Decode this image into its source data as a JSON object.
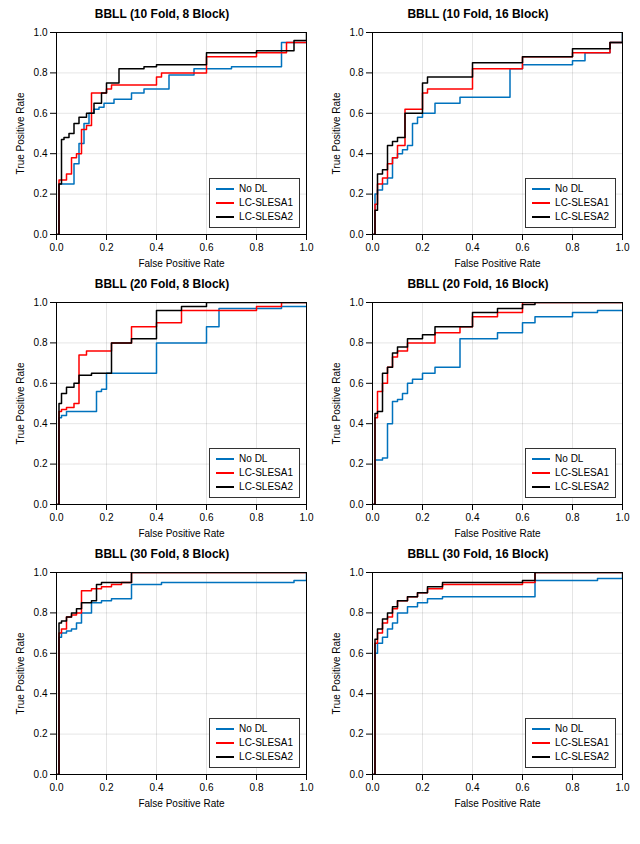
{
  "chart_data": [
    {
      "type": "step",
      "title": "BBLL (10 Fold, 8 Block)",
      "xlabel": "False Positive Rate",
      "ylabel": "True Positive Rate",
      "xlim": [
        0,
        1
      ],
      "ylim": [
        0,
        1
      ],
      "xticks": [
        {
          "value": 0,
          "label": "0.0"
        },
        0.2,
        0.4,
        0.6,
        0.8,
        {
          "value": 1,
          "label": "1.0"
        }
      ],
      "yticks": [
        {
          "value": 0,
          "label": "0.0"
        },
        0.2,
        0.4,
        0.6,
        0.8,
        {
          "value": 1,
          "label": "1.0"
        }
      ],
      "grid": true,
      "legend": "lower right",
      "series": [
        {
          "name": "No DL",
          "color": "#0072BD",
          "x": [
            0,
            0.01,
            0.01,
            0.02,
            0.04,
            0.05,
            0.07,
            0.09,
            0.11,
            0.13,
            0.15,
            0.17,
            0.19,
            0.21,
            0.23,
            0.3,
            0.35,
            0.4,
            0.45,
            0.55,
            0.6,
            0.7,
            0.8,
            0.9,
            0.95,
            1.0
          ],
          "values": [
            0,
            0.08,
            0.25,
            0.25,
            0.25,
            0.25,
            0.35,
            0.45,
            0.55,
            0.6,
            0.62,
            0.63,
            0.65,
            0.65,
            0.67,
            0.7,
            0.72,
            0.72,
            0.79,
            0.82,
            0.82,
            0.83,
            0.83,
            0.95,
            0.95,
            0.95
          ]
        },
        {
          "name": "LC-SLESA1",
          "color": "#FF0000",
          "x": [
            0,
            0.01,
            0.02,
            0.04,
            0.06,
            0.08,
            0.1,
            0.12,
            0.14,
            0.18,
            0.2,
            0.22,
            0.35,
            0.4,
            0.42,
            0.55,
            0.6,
            0.75,
            0.8,
            0.9,
            0.92,
            1.0
          ],
          "values": [
            0,
            0.27,
            0.27,
            0.3,
            0.38,
            0.4,
            0.52,
            0.54,
            0.7,
            0.7,
            0.72,
            0.74,
            0.74,
            0.78,
            0.8,
            0.8,
            0.88,
            0.88,
            0.9,
            0.9,
            0.95,
            0.95
          ]
        },
        {
          "name": "LC-SLESA2",
          "color": "#000000",
          "x": [
            0,
            0.01,
            0.02,
            0.03,
            0.05,
            0.07,
            0.09,
            0.12,
            0.15,
            0.18,
            0.2,
            0.25,
            0.35,
            0.4,
            0.55,
            0.6,
            0.75,
            0.8,
            0.9,
            0.95,
            1.0
          ],
          "values": [
            0,
            0.25,
            0.47,
            0.48,
            0.5,
            0.55,
            0.58,
            0.6,
            0.65,
            0.7,
            0.75,
            0.82,
            0.83,
            0.84,
            0.84,
            0.9,
            0.9,
            0.91,
            0.91,
            0.96,
            1.0
          ]
        }
      ]
    },
    {
      "type": "step",
      "title": "BBLL (10 Fold, 16 Block)",
      "xlabel": "False Positive Rate",
      "ylabel": "True Positive Rate",
      "xlim": [
        0,
        1
      ],
      "ylim": [
        0,
        1
      ],
      "xticks": [
        {
          "value": 0,
          "label": "0.0"
        },
        0.2,
        0.4,
        0.6,
        0.8,
        {
          "value": 1,
          "label": "1.0"
        }
      ],
      "yticks": [
        {
          "value": 0,
          "label": "0.0"
        },
        0.2,
        0.4,
        0.6,
        0.8,
        {
          "value": 1,
          "label": "1.0"
        }
      ],
      "grid": true,
      "legend": "lower right",
      "series": [
        {
          "name": "No DL",
          "color": "#0072BD",
          "x": [
            0,
            0.01,
            0.02,
            0.04,
            0.06,
            0.08,
            0.1,
            0.12,
            0.14,
            0.16,
            0.18,
            0.2,
            0.25,
            0.35,
            0.4,
            0.55,
            0.6,
            0.7,
            0.8,
            0.85,
            0.9,
            0.95,
            1.0
          ],
          "values": [
            0,
            0.2,
            0.22,
            0.25,
            0.28,
            0.38,
            0.4,
            0.42,
            0.44,
            0.55,
            0.58,
            0.6,
            0.65,
            0.68,
            0.68,
            0.82,
            0.84,
            0.84,
            0.86,
            0.9,
            0.9,
            0.95,
            1.0
          ]
        },
        {
          "name": "LC-SLESA1",
          "color": "#FF0000",
          "x": [
            0,
            0.01,
            0.02,
            0.04,
            0.06,
            0.08,
            0.1,
            0.13,
            0.18,
            0.2,
            0.22,
            0.35,
            0.4,
            0.55,
            0.6,
            0.7,
            0.8,
            0.9,
            0.95,
            1.0
          ],
          "values": [
            0,
            0.15,
            0.25,
            0.28,
            0.35,
            0.38,
            0.44,
            0.62,
            0.62,
            0.7,
            0.72,
            0.72,
            0.82,
            0.82,
            0.88,
            0.88,
            0.9,
            0.9,
            0.95,
            0.95
          ]
        },
        {
          "name": "LC-SLESA2",
          "color": "#000000",
          "x": [
            0,
            0.01,
            0.02,
            0.04,
            0.06,
            0.08,
            0.1,
            0.13,
            0.18,
            0.2,
            0.22,
            0.35,
            0.4,
            0.55,
            0.6,
            0.8,
            0.9,
            0.95,
            1.0
          ],
          "values": [
            0,
            0.12,
            0.3,
            0.32,
            0.44,
            0.46,
            0.48,
            0.6,
            0.6,
            0.75,
            0.78,
            0.78,
            0.85,
            0.85,
            0.88,
            0.92,
            0.92,
            0.95,
            1.0
          ]
        }
      ]
    },
    {
      "type": "step",
      "title": "BBLL (20 Fold, 8 Block)",
      "xlabel": "False Positive Rate",
      "ylabel": "True Positive Rate",
      "xlim": [
        0,
        1
      ],
      "ylim": [
        0,
        1
      ],
      "xticks": [
        {
          "value": 0,
          "label": "0.0"
        },
        0.2,
        0.4,
        0.6,
        0.8,
        {
          "value": 1,
          "label": "1.0"
        }
      ],
      "yticks": [
        {
          "value": 0,
          "label": "0.0"
        },
        0.2,
        0.4,
        0.6,
        0.8,
        {
          "value": 1,
          "label": "1.0"
        }
      ],
      "grid": true,
      "legend": "lower right",
      "series": [
        {
          "name": "No DL",
          "color": "#0072BD",
          "x": [
            0,
            0.01,
            0.02,
            0.04,
            0.07,
            0.09,
            0.14,
            0.16,
            0.18,
            0.2,
            0.3,
            0.4,
            0.5,
            0.6,
            0.65,
            0.8,
            0.9,
            1.0
          ],
          "values": [
            0,
            0.43,
            0.44,
            0.46,
            0.46,
            0.46,
            0.46,
            0.56,
            0.57,
            0.65,
            0.65,
            0.8,
            0.8,
            0.88,
            0.97,
            0.97,
            0.98,
            0.98
          ]
        },
        {
          "name": "LC-SLESA1",
          "color": "#FF0000",
          "x": [
            0,
            0.01,
            0.02,
            0.04,
            0.07,
            0.09,
            0.1,
            0.12,
            0.14,
            0.2,
            0.22,
            0.3,
            0.4,
            0.5,
            0.6,
            0.8,
            0.9,
            1.0
          ],
          "values": [
            0,
            0.46,
            0.47,
            0.48,
            0.5,
            0.74,
            0.74,
            0.76,
            0.76,
            0.76,
            0.8,
            0.88,
            0.9,
            0.96,
            0.96,
            0.98,
            1.0,
            1.0
          ]
        },
        {
          "name": "LC-SLESA2",
          "color": "#000000",
          "x": [
            0,
            0.01,
            0.02,
            0.04,
            0.07,
            0.09,
            0.1,
            0.12,
            0.14,
            0.2,
            0.22,
            0.3,
            0.4,
            0.5,
            0.6,
            0.8,
            0.9,
            1.0
          ],
          "values": [
            0,
            0.5,
            0.55,
            0.58,
            0.6,
            0.64,
            0.64,
            0.64,
            0.65,
            0.65,
            0.8,
            0.82,
            0.96,
            0.98,
            1.0,
            1.0,
            1.0,
            1.0
          ]
        }
      ]
    },
    {
      "type": "step",
      "title": "BBLL (20 Fold, 16 Block)",
      "xlabel": "False Positive Rate",
      "ylabel": "True Positive Rate",
      "xlim": [
        0,
        1
      ],
      "ylim": [
        0,
        1
      ],
      "xticks": [
        {
          "value": 0,
          "label": "0.0"
        },
        0.2,
        0.4,
        0.6,
        0.8,
        {
          "value": 1,
          "label": "1.0"
        }
      ],
      "yticks": [
        {
          "value": 0,
          "label": "0.0"
        },
        0.2,
        0.4,
        0.6,
        0.8,
        {
          "value": 1,
          "label": "1.0"
        }
      ],
      "grid": true,
      "legend": "lower right",
      "series": [
        {
          "name": "No DL",
          "color": "#0072BD",
          "x": [
            0,
            0.01,
            0.02,
            0.04,
            0.06,
            0.08,
            0.1,
            0.12,
            0.14,
            0.16,
            0.2,
            0.25,
            0.35,
            0.4,
            0.5,
            0.6,
            0.65,
            0.8,
            0.9,
            1.0
          ],
          "values": [
            0,
            0.22,
            0.22,
            0.23,
            0.4,
            0.51,
            0.52,
            0.55,
            0.6,
            0.62,
            0.65,
            0.68,
            0.82,
            0.82,
            0.85,
            0.9,
            0.93,
            0.95,
            0.96,
            0.96
          ]
        },
        {
          "name": "LC-SLESA1",
          "color": "#FF0000",
          "x": [
            0,
            0.01,
            0.02,
            0.04,
            0.06,
            0.08,
            0.1,
            0.14,
            0.2,
            0.25,
            0.35,
            0.4,
            0.5,
            0.6,
            0.65,
            0.8,
            0.9,
            1.0
          ],
          "values": [
            0,
            0.43,
            0.56,
            0.6,
            0.68,
            0.73,
            0.76,
            0.8,
            0.8,
            0.85,
            0.88,
            0.93,
            0.95,
            1.0,
            1.0,
            1.0,
            1.0,
            1.0
          ]
        },
        {
          "name": "LC-SLESA2",
          "color": "#000000",
          "x": [
            0,
            0.01,
            0.02,
            0.04,
            0.06,
            0.08,
            0.1,
            0.14,
            0.2,
            0.25,
            0.35,
            0.4,
            0.5,
            0.6,
            0.65,
            0.8,
            0.9,
            1.0
          ],
          "values": [
            0,
            0.45,
            0.46,
            0.65,
            0.68,
            0.75,
            0.78,
            0.82,
            0.84,
            0.88,
            0.88,
            0.95,
            0.97,
            0.99,
            1.0,
            1.0,
            1.0,
            1.0
          ]
        }
      ]
    },
    {
      "type": "step",
      "title": "BBLL (30 Fold, 8 Block)",
      "xlabel": "False Positive Rate",
      "ylabel": "True Positive Rate",
      "xlim": [
        0,
        1
      ],
      "ylim": [
        0,
        1
      ],
      "xticks": [
        {
          "value": 0,
          "label": "0.0"
        },
        0.2,
        0.4,
        0.6,
        0.8,
        {
          "value": 1,
          "label": "1.0"
        }
      ],
      "yticks": [
        {
          "value": 0,
          "label": "0.0"
        },
        0.2,
        0.4,
        0.6,
        0.8,
        {
          "value": 1,
          "label": "1.0"
        }
      ],
      "grid": true,
      "legend": "lower right",
      "series": [
        {
          "name": "No DL",
          "color": "#0072BD",
          "x": [
            0,
            0.01,
            0.02,
            0.04,
            0.06,
            0.08,
            0.1,
            0.14,
            0.18,
            0.22,
            0.3,
            0.42,
            0.9,
            0.95,
            1.0
          ],
          "values": [
            0,
            0.68,
            0.7,
            0.71,
            0.72,
            0.75,
            0.8,
            0.85,
            0.86,
            0.87,
            0.94,
            0.95,
            0.95,
            0.96,
            1.0
          ]
        },
        {
          "name": "LC-SLESA1",
          "color": "#FF0000",
          "x": [
            0,
            0.01,
            0.02,
            0.04,
            0.06,
            0.08,
            0.1,
            0.14,
            0.18,
            0.22,
            0.26,
            0.3,
            0.42,
            0.9,
            1.0
          ],
          "values": [
            0,
            0.7,
            0.72,
            0.78,
            0.79,
            0.8,
            0.91,
            0.92,
            0.93,
            0.94,
            0.95,
            1.0,
            1.0,
            1.0,
            1.0
          ]
        },
        {
          "name": "LC-SLESA2",
          "color": "#000000",
          "x": [
            0,
            0.01,
            0.02,
            0.04,
            0.06,
            0.08,
            0.1,
            0.14,
            0.16,
            0.18,
            0.22,
            0.26,
            0.3,
            0.42,
            0.9,
            1.0
          ],
          "values": [
            0,
            0.75,
            0.76,
            0.78,
            0.8,
            0.82,
            0.85,
            0.86,
            0.94,
            0.95,
            0.95,
            0.95,
            1.0,
            1.0,
            1.0,
            1.0
          ]
        }
      ]
    },
    {
      "type": "step",
      "title": "BBLL (30 Fold, 16 Block)",
      "xlabel": "False Positive Rate",
      "ylabel": "True Positive Rate",
      "xlim": [
        0,
        1
      ],
      "ylim": [
        0,
        1
      ],
      "xticks": [
        {
          "value": 0,
          "label": "0.0"
        },
        0.2,
        0.4,
        0.6,
        0.8,
        {
          "value": 1,
          "label": "1.0"
        }
      ],
      "yticks": [
        {
          "value": 0,
          "label": "0.0"
        },
        0.2,
        0.4,
        0.6,
        0.8,
        {
          "value": 1,
          "label": "1.0"
        }
      ],
      "grid": true,
      "legend": "lower right",
      "series": [
        {
          "name": "No DL",
          "color": "#0072BD",
          "x": [
            0,
            0.01,
            0.02,
            0.04,
            0.06,
            0.08,
            0.1,
            0.14,
            0.18,
            0.22,
            0.28,
            0.6,
            0.65,
            0.9,
            1.0
          ],
          "values": [
            0,
            0.6,
            0.65,
            0.68,
            0.72,
            0.75,
            0.8,
            0.83,
            0.85,
            0.87,
            0.88,
            0.88,
            0.96,
            0.97,
            1.0
          ]
        },
        {
          "name": "LC-SLESA1",
          "color": "#FF0000",
          "x": [
            0,
            0.01,
            0.02,
            0.04,
            0.06,
            0.08,
            0.1,
            0.14,
            0.18,
            0.22,
            0.28,
            0.6,
            0.65,
            0.9,
            1.0
          ],
          "values": [
            0,
            0.65,
            0.7,
            0.75,
            0.78,
            0.82,
            0.86,
            0.88,
            0.9,
            0.92,
            0.94,
            0.95,
            1.0,
            1.0,
            1.0
          ]
        },
        {
          "name": "LC-SLESA2",
          "color": "#000000",
          "x": [
            0,
            0.01,
            0.02,
            0.04,
            0.06,
            0.08,
            0.1,
            0.14,
            0.18,
            0.22,
            0.28,
            0.6,
            0.65,
            0.9,
            1.0
          ],
          "values": [
            0,
            0.67,
            0.72,
            0.77,
            0.8,
            0.83,
            0.86,
            0.88,
            0.9,
            0.93,
            0.95,
            0.96,
            1.0,
            1.0,
            1.0
          ]
        }
      ]
    }
  ]
}
